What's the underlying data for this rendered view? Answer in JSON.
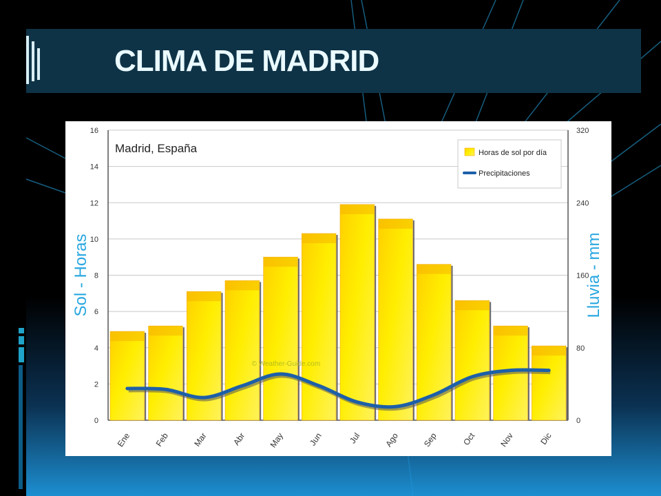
{
  "slide": {
    "title": "CLIMA DE MADRID"
  },
  "colors": {
    "title_bar": "#0f3346",
    "title_text": "#eafaff",
    "bar_fill": "#ffee00",
    "bar_edge": "#f5a800",
    "rain_line": "#1d5fa8",
    "axis_label": "#29a7e0"
  },
  "chart_data": {
    "type": "bar",
    "annotation": "Madrid, España",
    "watermark": "© Weather-Guide.com",
    "legend_position": "top-right",
    "grid": true,
    "categories": [
      "Ene",
      "Feb",
      "Mar",
      "Abr",
      "May",
      "Jun",
      "Jul",
      "Ago",
      "Sep",
      "Oct",
      "Nov",
      "Dic"
    ],
    "series": [
      {
        "name": "Horas de sol por día",
        "kind": "bar",
        "axis": "left",
        "values": [
          4.9,
          5.2,
          7.1,
          7.7,
          9.0,
          10.3,
          11.9,
          11.1,
          8.6,
          6.6,
          5.2,
          4.1
        ]
      },
      {
        "name": "Precipitaciones",
        "kind": "line",
        "axis": "right",
        "values": [
          35,
          34,
          25,
          38,
          51,
          38,
          20,
          15,
          28,
          48,
          55,
          55
        ]
      }
    ],
    "y_left": {
      "label": "Sol - Horas",
      "lim": [
        0,
        16
      ],
      "ticks": [
        "0",
        "2",
        "4",
        "6",
        "8",
        "10",
        "12",
        "14",
        "16"
      ]
    },
    "y_right": {
      "label": "Lluvia - mm",
      "lim": [
        0,
        320
      ],
      "ticks": [
        "0",
        "80",
        "160",
        "240",
        "320"
      ]
    }
  }
}
